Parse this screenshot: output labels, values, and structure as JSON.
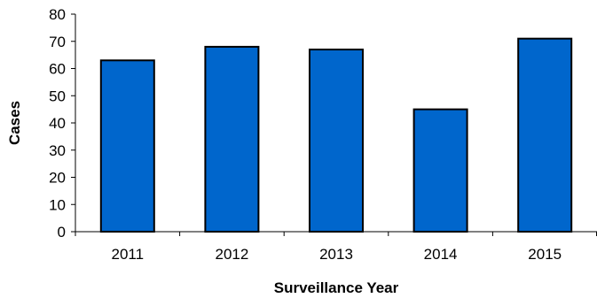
{
  "chart_data": {
    "type": "bar",
    "title": "",
    "xlabel": "Surveillance Year",
    "ylabel": "Cases",
    "categories": [
      "2011",
      "2012",
      "2013",
      "2014",
      "2015"
    ],
    "values": [
      63,
      68,
      67,
      45,
      71
    ],
    "ylim": [
      0,
      80
    ],
    "yticks": [
      0,
      10,
      20,
      30,
      40,
      50,
      60,
      70,
      80
    ],
    "ytick_labels": [
      "0",
      "10",
      "20",
      "30",
      "40",
      "50",
      "60",
      "70",
      "80"
    ],
    "bar_color": "#0066CC",
    "bar_edge_color": "#000000",
    "grid": false,
    "legend": "none"
  }
}
